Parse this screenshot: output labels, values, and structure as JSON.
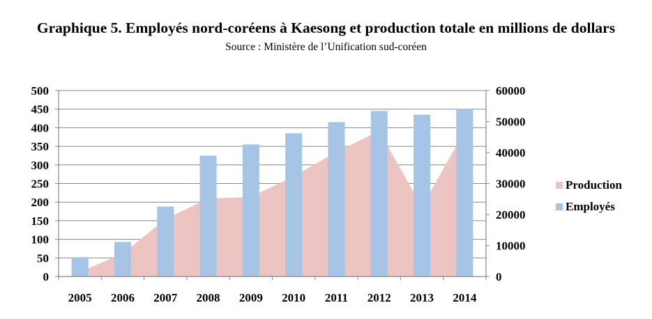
{
  "chart_data": {
    "type": "bar",
    "title": "Graphique 5. Employés nord-coréens à Kaesong et production totale en millions de dollars",
    "subtitle": "Source : Ministère de l’Unification sud-coréen",
    "categories": [
      "2005",
      "2006",
      "2007",
      "2008",
      "2009",
      "2010",
      "2011",
      "2012",
      "2013",
      "2014"
    ],
    "series": [
      {
        "name": "Production",
        "type": "area",
        "axis": "right",
        "color": "#ecc4c1",
        "values": [
          1500,
          7400,
          18500,
          25100,
          25700,
          32300,
          40200,
          47000,
          22400,
          47000
        ]
      },
      {
        "name": "Employés",
        "type": "bar",
        "axis": "left",
        "color": "#a5c4e6",
        "values": [
          52,
          93,
          188,
          325,
          355,
          385,
          415,
          445,
          435,
          450
        ]
      }
    ],
    "y_left": {
      "ylim": [
        0,
        500
      ],
      "ticks": [
        "0",
        "50",
        "100",
        "150",
        "200",
        "250",
        "300",
        "350",
        "400",
        "450",
        "500"
      ]
    },
    "y_right": {
      "ylim": [
        0,
        60000
      ],
      "ticks": [
        "0",
        "10000",
        "20000",
        "30000",
        "40000",
        "50000",
        "60000"
      ]
    },
    "grid": true,
    "legend_position": "right"
  }
}
